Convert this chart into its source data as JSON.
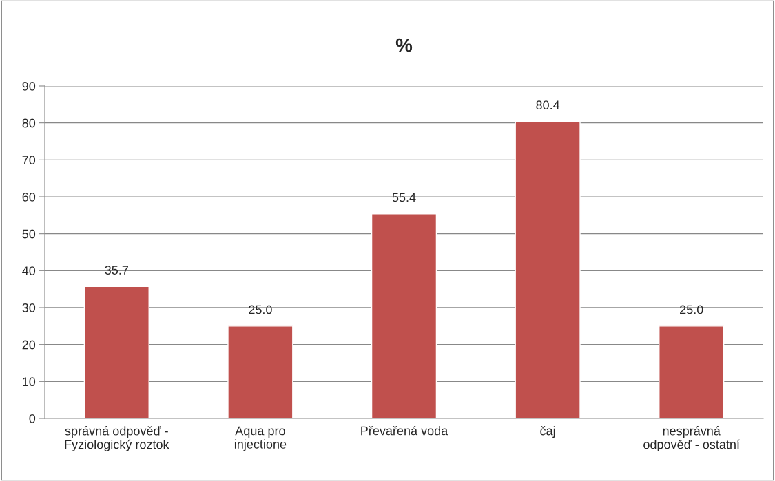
{
  "chart_data": {
    "type": "bar",
    "title": "%",
    "categories": [
      "správná odpověď -\nFyziologický roztok",
      "Aqua pro\ninjectione",
      "Převařená voda",
      "čaj",
      "nesprávná\nodpověď - ostatní"
    ],
    "values": [
      35.7,
      25.0,
      55.4,
      80.4,
      25.0
    ],
    "value_labels": [
      "35.7",
      "25.0",
      "55.4",
      "80.4",
      "25.0"
    ],
    "color": "#c0504d",
    "ylim": [
      0,
      90
    ],
    "yticks": [
      0,
      10,
      20,
      30,
      40,
      50,
      60,
      70,
      80,
      90
    ],
    "grid": "y",
    "legend": false
  }
}
